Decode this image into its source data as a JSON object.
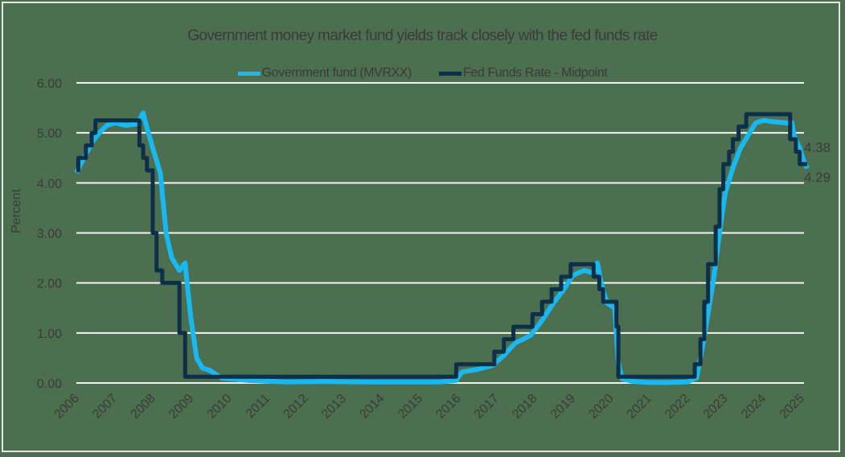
{
  "chart_data": {
    "type": "line",
    "title": "Government money market fund yields track closely with the fed funds rate",
    "xlabel": "",
    "ylabel": "Percent",
    "ylim": [
      0,
      6
    ],
    "xlim": [
      2006,
      2025
    ],
    "grid": true,
    "legend_position": "top",
    "y_ticks": [
      "0.00",
      "1.00",
      "2.00",
      "3.00",
      "4.00",
      "5.00",
      "6.00"
    ],
    "x_ticks": [
      "2006",
      "2007",
      "2008",
      "2009",
      "2010",
      "2011",
      "2012",
      "2013",
      "2014",
      "2015",
      "2016",
      "2017",
      "2018",
      "2019",
      "2020",
      "2021",
      "2022",
      "2023",
      "2024",
      "2025"
    ],
    "series": [
      {
        "name": "Government fund (MVRXX)",
        "color": "#1ab8f0",
        "end_label": "4.29",
        "points": [
          [
            2006.0,
            4.2
          ],
          [
            2006.2,
            4.5
          ],
          [
            2006.4,
            4.8
          ],
          [
            2006.6,
            5.0
          ],
          [
            2006.8,
            5.15
          ],
          [
            2007.0,
            5.2
          ],
          [
            2007.3,
            5.15
          ],
          [
            2007.6,
            5.18
          ],
          [
            2007.75,
            5.4
          ],
          [
            2007.85,
            5.1
          ],
          [
            2008.0,
            4.7
          ],
          [
            2008.2,
            4.2
          ],
          [
            2008.35,
            3.0
          ],
          [
            2008.5,
            2.5
          ],
          [
            2008.7,
            2.25
          ],
          [
            2008.85,
            2.4
          ],
          [
            2008.9,
            2.0
          ],
          [
            2009.0,
            1.3
          ],
          [
            2009.15,
            0.5
          ],
          [
            2009.3,
            0.3
          ],
          [
            2009.5,
            0.25
          ],
          [
            2009.8,
            0.1
          ],
          [
            2010.5,
            0.05
          ],
          [
            2011.5,
            0.02
          ],
          [
            2012.5,
            0.03
          ],
          [
            2013.5,
            0.02
          ],
          [
            2014.5,
            0.02
          ],
          [
            2015.5,
            0.02
          ],
          [
            2015.95,
            0.05
          ],
          [
            2016.1,
            0.22
          ],
          [
            2016.5,
            0.27
          ],
          [
            2016.9,
            0.35
          ],
          [
            2017.2,
            0.55
          ],
          [
            2017.5,
            0.8
          ],
          [
            2017.9,
            0.95
          ],
          [
            2018.2,
            1.25
          ],
          [
            2018.5,
            1.6
          ],
          [
            2018.8,
            1.9
          ],
          [
            2019.0,
            2.15
          ],
          [
            2019.3,
            2.25
          ],
          [
            2019.55,
            2.2
          ],
          [
            2019.65,
            2.4
          ],
          [
            2019.75,
            2.0
          ],
          [
            2019.9,
            1.6
          ],
          [
            2020.1,
            1.5
          ],
          [
            2020.2,
            0.4
          ],
          [
            2020.3,
            0.08
          ],
          [
            2020.6,
            0.03
          ],
          [
            2021.0,
            0.01
          ],
          [
            2021.5,
            0.01
          ],
          [
            2022.0,
            0.02
          ],
          [
            2022.25,
            0.1
          ],
          [
            2022.4,
            0.7
          ],
          [
            2022.55,
            1.4
          ],
          [
            2022.7,
            2.1
          ],
          [
            2022.85,
            3.0
          ],
          [
            2023.0,
            3.8
          ],
          [
            2023.2,
            4.3
          ],
          [
            2023.4,
            4.7
          ],
          [
            2023.6,
            4.95
          ],
          [
            2023.8,
            5.2
          ],
          [
            2024.0,
            5.25
          ],
          [
            2024.3,
            5.22
          ],
          [
            2024.6,
            5.2
          ],
          [
            2024.75,
            5.2
          ],
          [
            2024.8,
            4.95
          ],
          [
            2024.95,
            4.7
          ],
          [
            2025.05,
            4.45
          ],
          [
            2025.15,
            4.29
          ]
        ]
      },
      {
        "name": "Fed Funds Rate - Midpoint",
        "color": "#0d2f4a",
        "end_label": "4.38",
        "points": [
          [
            2006.0,
            4.25
          ],
          [
            2006.05,
            4.5
          ],
          [
            2006.25,
            4.75
          ],
          [
            2006.4,
            5.0
          ],
          [
            2006.5,
            5.25
          ],
          [
            2007.6,
            5.25
          ],
          [
            2007.65,
            4.75
          ],
          [
            2007.75,
            4.5
          ],
          [
            2007.85,
            4.25
          ],
          [
            2008.0,
            3.0
          ],
          [
            2008.1,
            2.25
          ],
          [
            2008.25,
            2.0
          ],
          [
            2008.7,
            1.0
          ],
          [
            2008.85,
            0.125
          ],
          [
            2015.95,
            0.375
          ],
          [
            2016.95,
            0.625
          ],
          [
            2017.2,
            0.875
          ],
          [
            2017.45,
            1.125
          ],
          [
            2017.95,
            1.375
          ],
          [
            2018.2,
            1.625
          ],
          [
            2018.45,
            1.875
          ],
          [
            2018.7,
            2.125
          ],
          [
            2018.95,
            2.375
          ],
          [
            2019.55,
            2.125
          ],
          [
            2019.7,
            1.875
          ],
          [
            2019.8,
            1.625
          ],
          [
            2020.15,
            1.125
          ],
          [
            2020.2,
            0.125
          ],
          [
            2022.2,
            0.375
          ],
          [
            2022.35,
            0.875
          ],
          [
            2022.45,
            1.625
          ],
          [
            2022.55,
            2.375
          ],
          [
            2022.75,
            3.125
          ],
          [
            2022.85,
            3.875
          ],
          [
            2022.95,
            4.375
          ],
          [
            2023.1,
            4.625
          ],
          [
            2023.2,
            4.875
          ],
          [
            2023.35,
            5.125
          ],
          [
            2023.55,
            5.375
          ],
          [
            2024.7,
            4.875
          ],
          [
            2024.85,
            4.625
          ],
          [
            2024.95,
            4.375
          ],
          [
            2025.15,
            4.375
          ]
        ]
      }
    ]
  },
  "legend": {
    "items": [
      {
        "label": "Government fund (MVRXX)",
        "color": "#1ab8f0"
      },
      {
        "label": "Fed Funds Rate - Midpoint",
        "color": "#0d2f4a"
      }
    ]
  },
  "colors": {
    "background": "#4b6f4f",
    "grid": "#f2f2f2",
    "text": "#3b3b3b"
  }
}
